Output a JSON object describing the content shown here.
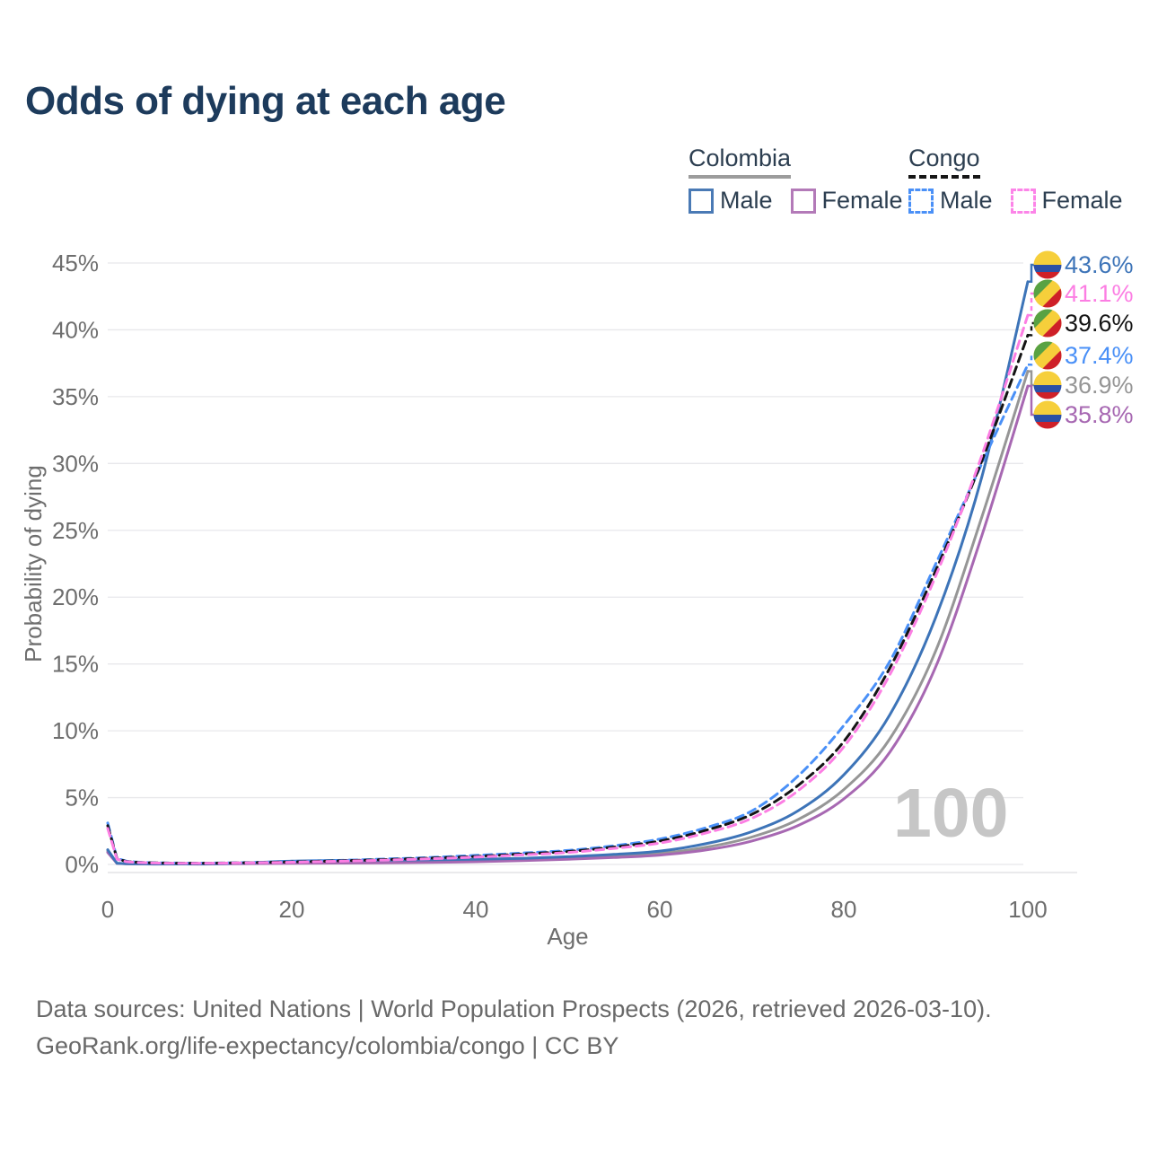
{
  "title": "Odds of dying at each age",
  "watermark": "100",
  "legend": {
    "groups": [
      {
        "label": "Colombia",
        "underline_color": "#9c9c9c",
        "underline_style": "solid",
        "items": [
          {
            "label": "Male",
            "color": "#4a7ab5",
            "dashed": false
          },
          {
            "label": "Female",
            "color": "#b37ab8",
            "dashed": false
          }
        ]
      },
      {
        "label": "Congo",
        "underline_color": "#161616",
        "underline_style": "dashed",
        "items": [
          {
            "label": "Male",
            "color": "#4a90f7",
            "dashed": true
          },
          {
            "label": "Female",
            "color": "#fc84e8",
            "dashed": true
          }
        ]
      }
    ]
  },
  "y_axis": {
    "title": "Probability of dying",
    "tick_values": [
      0,
      5,
      10,
      15,
      20,
      25,
      30,
      35,
      40,
      45
    ],
    "tick_labels": [
      "0%",
      "5%",
      "10%",
      "15%",
      "20%",
      "25%",
      "30%",
      "35%",
      "40%",
      "45%"
    ]
  },
  "x_axis": {
    "title": "Age",
    "tick_values": [
      0,
      20,
      40,
      60,
      80,
      100
    ],
    "tick_labels": [
      "0",
      "20",
      "40",
      "60",
      "80",
      "100"
    ]
  },
  "footer": {
    "line1": "Data sources: United Nations | World Population Prospects (2026, retrieved 2026-03-10).",
    "line2": "GeoRank.org/life-expectancy/colombia/congo | CC BY"
  },
  "flag_colors": {
    "colombia": {
      "yellow": "#F6CF3B",
      "blue": "#2B50A5",
      "red": "#CE2028"
    },
    "congo": {
      "green": "#58A243",
      "yellow": "#F6CF3B",
      "red": "#CE2028"
    }
  },
  "chart_data": {
    "type": "line",
    "title": "Odds of dying at each age",
    "xlabel": "Age",
    "ylabel": "Probability of dying",
    "x_range": [
      0,
      100
    ],
    "y_range_percent": [
      0,
      45
    ],
    "grid": "horizontal",
    "legend_position": "top-right",
    "x": [
      0,
      1,
      2,
      5,
      10,
      15,
      20,
      25,
      30,
      35,
      40,
      45,
      50,
      55,
      60,
      65,
      70,
      75,
      80,
      85,
      90,
      95,
      100
    ],
    "series": [
      {
        "id": "colombia_all",
        "name": "Colombia Both sexes",
        "country": "colombia",
        "color": "#969696",
        "line_style": "solid",
        "end_value": 36.9,
        "end_label": "36.9%",
        "values": [
          1.0,
          0.085,
          0.055,
          0.035,
          0.035,
          0.09,
          0.17,
          0.2,
          0.22,
          0.25,
          0.29,
          0.37,
          0.47,
          0.62,
          0.83,
          1.28,
          2.05,
          3.35,
          5.6,
          9.4,
          16.0,
          26.0,
          36.9
        ]
      },
      {
        "id": "colombia_female",
        "name": "Colombia Female",
        "country": "colombia",
        "color": "#a768b2",
        "line_style": "solid",
        "end_value": 35.8,
        "end_label": "35.8%",
        "values": [
          0.9,
          0.08,
          0.05,
          0.03,
          0.03,
          0.06,
          0.08,
          0.1,
          0.12,
          0.15,
          0.2,
          0.28,
          0.39,
          0.52,
          0.7,
          1.08,
          1.75,
          2.9,
          4.9,
          8.4,
          14.8,
          24.6,
          35.8
        ]
      },
      {
        "id": "colombia_male",
        "name": "Colombia Male",
        "country": "colombia",
        "color": "#3d74b8",
        "line_style": "solid",
        "end_value": 43.6,
        "end_label": "43.6%",
        "values": [
          1.1,
          0.09,
          0.06,
          0.04,
          0.04,
          0.12,
          0.25,
          0.3,
          0.32,
          0.34,
          0.38,
          0.46,
          0.58,
          0.75,
          1.0,
          1.55,
          2.45,
          4.0,
          6.7,
          11.2,
          18.5,
          29.0,
          43.6
        ]
      },
      {
        "id": "congo_male",
        "name": "Congo Male",
        "country": "congo",
        "color": "#4a90f7",
        "line_style": "dashed",
        "end_value": 37.4,
        "end_label": "37.4%",
        "values": [
          3.1,
          0.45,
          0.25,
          0.13,
          0.1,
          0.14,
          0.21,
          0.3,
          0.4,
          0.52,
          0.68,
          0.85,
          1.05,
          1.4,
          1.9,
          2.75,
          4.0,
          6.6,
          10.4,
          15.2,
          22.5,
          30.0,
          37.4
        ]
      },
      {
        "id": "congo_all",
        "name": "Congo Both sexes",
        "country": "congo",
        "color": "#141414",
        "line_style": "dashed",
        "end_value": 39.6,
        "end_label": "39.6%",
        "values": [
          2.9,
          0.42,
          0.23,
          0.12,
          0.09,
          0.13,
          0.19,
          0.27,
          0.36,
          0.47,
          0.6,
          0.78,
          0.97,
          1.3,
          1.75,
          2.55,
          3.75,
          5.9,
          9.2,
          14.7,
          22.0,
          30.2,
          39.6
        ]
      },
      {
        "id": "congo_female",
        "name": "Congo Female",
        "country": "congo",
        "color": "#fc7ee3",
        "line_style": "dashed",
        "end_value": 41.1,
        "end_label": "41.1%",
        "values": [
          2.7,
          0.39,
          0.21,
          0.11,
          0.085,
          0.12,
          0.17,
          0.24,
          0.32,
          0.42,
          0.55,
          0.71,
          0.89,
          1.2,
          1.6,
          2.35,
          3.45,
          5.5,
          8.8,
          14.2,
          21.6,
          30.6,
          41.1
        ]
      }
    ]
  }
}
